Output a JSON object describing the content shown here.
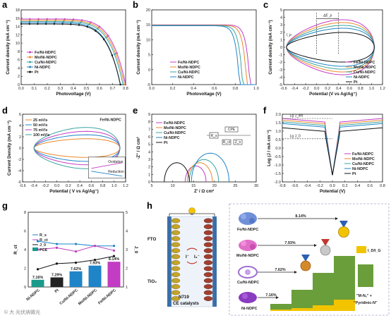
{
  "figure": {
    "watermark": "© 大 光伏纳微光",
    "panel_labels": [
      "a",
      "b",
      "c",
      "d",
      "e",
      "f",
      "g",
      "h"
    ]
  },
  "chart_data": [
    {
      "id": "a",
      "type": "line",
      "xlabel": "Photovoltage (V)",
      "ylabel": "Current density (mA cm⁻²)",
      "xlim": [
        0,
        0.8
      ],
      "ylim": [
        0,
        18
      ],
      "xticks": [
        "0.0",
        "0.1",
        "0.2",
        "0.3",
        "0.4",
        "0.5",
        "0.6",
        "0.7",
        "0.8"
      ],
      "yticks": [
        "0",
        "2",
        "4",
        "6",
        "8",
        "10",
        "12",
        "14",
        "16",
        "18"
      ],
      "legend_position": "bottom-left",
      "series": [
        {
          "name": "Fe/Ni-NDPC",
          "color": "#c23cc4",
          "marker": "circle",
          "jsc": 15.8,
          "voc": 0.8
        },
        {
          "name": "Mo/Ni-NDPC",
          "color": "#e98a2c",
          "marker": "circle",
          "jsc": 15.5,
          "voc": 0.79
        },
        {
          "name": "Cu/Ni-NDPC",
          "color": "#3aa5a0",
          "marker": "circle",
          "jsc": 15.2,
          "voc": 0.78
        },
        {
          "name": "Ni-NDPC",
          "color": "#1f84c8",
          "marker": "circle",
          "jsc": 14.9,
          "voc": 0.76
        },
        {
          "name": "Pt",
          "color": "#111111",
          "marker": "circle",
          "jsc": 14.6,
          "voc": 0.76
        }
      ]
    },
    {
      "id": "b",
      "type": "line",
      "xlabel": "Photovoltage (V)",
      "ylabel": "Current density (mA cm⁻²)",
      "xlim": [
        0,
        1.0
      ],
      "ylim": [
        -5,
        20
      ],
      "xticks": [
        "0.0",
        "0.2",
        "0.4",
        "0.6",
        "0.8",
        "1.0"
      ],
      "yticks": [
        "-5",
        "0",
        "5",
        "10",
        "15",
        "20"
      ],
      "legend_position": "bottom-left",
      "series": [
        {
          "name": "Fe/Ni-NDPC",
          "color": "#c23cc4",
          "jsc": 15.0,
          "voc": 0.93
        },
        {
          "name": "Mo/Ni-NDPC",
          "color": "#e98a2c",
          "jsc": 14.9,
          "voc": 0.9
        },
        {
          "name": "Cu/Ni-NDPC",
          "color": "#3aa5a0",
          "jsc": 14.8,
          "voc": 0.86
        },
        {
          "name": "Ni-NDPC",
          "color": "#1f84c8",
          "jsc": 14.7,
          "voc": 0.83
        }
      ]
    },
    {
      "id": "c",
      "type": "line",
      "xlabel": "Potential (V vs Ag/Ag⁺)",
      "ylabel": "Current density (mA cm⁻²)",
      "xlim": [
        -0.6,
        1.2
      ],
      "ylim": [
        -5,
        5
      ],
      "xticks": [
        "-0.6",
        "-0.4",
        "-0.2",
        "0.0",
        "0.2",
        "0.4",
        "0.6",
        "0.8",
        "1.0",
        "1.2"
      ],
      "yticks": [
        "-5",
        "-4",
        "-3",
        "-2",
        "-1",
        "0",
        "1",
        "2",
        "3",
        "4",
        "5"
      ],
      "annotations": [
        "ΔE_p",
        "I_p"
      ],
      "legend_position": "bottom-right",
      "series": [
        {
          "name": "Fe/Ni-NDPC",
          "color": "#c23cc4",
          "amp": 3.9
        },
        {
          "name": "Mo/Ni-NDPC",
          "color": "#e98a2c",
          "amp": 3.5
        },
        {
          "name": "Cu/Ni-NDPC",
          "color": "#3aa5a0",
          "amp": 3.1
        },
        {
          "name": "Ni-NDPC",
          "color": "#1f84c8",
          "amp": 2.7
        },
        {
          "name": "Pt",
          "color": "#111111",
          "amp": 2.1
        }
      ]
    },
    {
      "id": "d",
      "type": "line",
      "xlabel": "Potential ( V vs Ag/Ag⁺)",
      "ylabel": "Current Density (mA cm⁻²)",
      "xlim": [
        -0.6,
        1.2
      ],
      "ylim": [
        -6,
        6
      ],
      "xticks": [
        "-0.6",
        "-0.4",
        "-0.2",
        "0.0",
        "0.2",
        "0.4",
        "0.6",
        "0.8",
        "1.0",
        "1.2"
      ],
      "yticks": [
        "-6",
        "-4",
        "-2",
        "0",
        "2",
        "4",
        "6"
      ],
      "title_inset": "Fe/Ni-NDPC",
      "inset_labels": [
        "Oxidation",
        "Reduction"
      ],
      "legend_position": "top-left",
      "series": [
        {
          "name": "25 mV/s",
          "color": "#e98a2c",
          "amp": 1.9
        },
        {
          "name": "50 mV/s",
          "color": "#1f84c8",
          "amp": 2.7
        },
        {
          "name": "75 mV/s",
          "color": "#c23cc4",
          "amp": 3.4
        },
        {
          "name": "100 mV/s",
          "color": "#3aa5a0",
          "amp": 4.2
        }
      ]
    },
    {
      "id": "e",
      "type": "line",
      "xlabel": "Z' / Ω cm²",
      "ylabel": "-Z'' / Ω cm²",
      "xlim": [
        5,
        30
      ],
      "ylim": [
        0,
        9
      ],
      "xticks": [
        "5",
        "10",
        "15",
        "20",
        "25",
        "30"
      ],
      "yticks": [
        "0",
        "1",
        "2",
        "3",
        "4",
        "5",
        "6",
        "7",
        "8",
        "9"
      ],
      "circuit_labels": [
        "R_s",
        "CPE",
        "R_ct",
        "Z_n"
      ],
      "legend_position": "top-left",
      "series": [
        {
          "name": "Fe/Ni-NDPC",
          "color": "#c23cc4",
          "r0": 13.0,
          "r1": 18.0
        },
        {
          "name": "Mo/Ni-NDPC",
          "color": "#e98a2c",
          "r0": 13.5,
          "r1": 19.5
        },
        {
          "name": "Cu/Ni-NDPC",
          "color": "#3aa5a0",
          "r0": 14.0,
          "r1": 21.0
        },
        {
          "name": "Ni-NDPC",
          "color": "#1f84c8",
          "r0": 14.5,
          "r1": 23.5
        },
        {
          "name": "Pt",
          "color": "#111111",
          "r0": 8.0,
          "r1": 14.0
        }
      ]
    },
    {
      "id": "f",
      "type": "line",
      "xlabel": "Potential (V)",
      "ylabel": "Log (J / mA cm⁻²)",
      "xlim": [
        -0.8,
        0.8
      ],
      "ylim": [
        -2.0,
        2.0
      ],
      "xticks": [
        "-0.8",
        "-0.6",
        "-0.4",
        "-0.2",
        "0.0",
        "0.2",
        "0.4",
        "0.6",
        "0.8"
      ],
      "yticks": [
        "-2.0",
        "-1.5",
        "-1.0",
        "-0.5",
        "0.0",
        "0.5",
        "1.0",
        "1.5",
        "2.0"
      ],
      "annotations": [
        "Lg J_lim",
        "Lg J_0"
      ],
      "legend_position": "bottom-right",
      "series": [
        {
          "name": "Fe/Ni-NDPC",
          "color": "#c23cc4",
          "plateau": 1.75
        },
        {
          "name": "Mo/Ni-NDPC",
          "color": "#e98a2c",
          "plateau": 1.65
        },
        {
          "name": "Cu/Ni-NDPC",
          "color": "#3aa5a0",
          "plateau": 1.55
        },
        {
          "name": "Ni-NDPC",
          "color": "#1f84c8",
          "plateau": 1.45
        },
        {
          "name": "Pt",
          "color": "#111111",
          "plateau": 1.2
        }
      ]
    },
    {
      "id": "g",
      "type": "bar",
      "categories": [
        "Ni-NDPC",
        "Pt",
        "Cu/Ni-NDPC",
        "Mo/Ni-NDPC",
        "Fe/Ni-NDPC"
      ],
      "pce_values": [
        7.16,
        7.29,
        7.62,
        7.93,
        8.14
      ],
      "pce_labels": [
        "7.16%",
        "7.29%",
        "7.62%",
        "7.93%",
        "8.14%"
      ],
      "bar_colors": [
        "#1a9a8a",
        "#222222",
        "#1f84c8",
        "#1f84c8",
        "#c23cc4"
      ],
      "ylabel_left": "R_ct",
      "ylabel_right": "J_0",
      "yticks_left": [
        "0",
        "2",
        "4",
        "6",
        "8"
      ],
      "yticks_right": [
        "1",
        "2",
        "3",
        "4",
        "5"
      ],
      "legend": [
        {
          "name": "R_s",
          "color": "#1f84c8"
        },
        {
          "name": "R_ct",
          "color": "#c23cc4"
        },
        {
          "name": "J_0",
          "color": "#111111"
        },
        {
          "name": "PCE",
          "color": "#1a9a8a"
        }
      ],
      "series_lines": [
        {
          "name": "R_s",
          "color": "#1f84c8",
          "values": [
            4.9,
            4.6,
            4.6,
            4.4,
            4.4
          ]
        },
        {
          "name": "R_ct",
          "color": "#c23cc4",
          "values": [
            4.0,
            4.2,
            3.8,
            4.4,
            3.9
          ]
        },
        {
          "name": "J_0",
          "color": "#111111",
          "values": [
            1.9,
            2.5,
            2.6,
            2.9,
            3.3
          ]
        }
      ]
    }
  ],
  "schematic_h": {
    "labels": {
      "fto": "FTO",
      "tio2": "TiO₂",
      "n719": "N719",
      "ce_catalysts": "CE catalysts",
      "i_minus": "I⁻",
      "i3_minus": "I₃⁻"
    },
    "materials": [
      "Fe/Ni-NDPC",
      "Mo/Ni-NDPC",
      "Cu/Ni-NDPC",
      "Ni-NDPC"
    ],
    "pce": [
      "8.14%",
      "7.93%",
      "7.62%",
      "7.16%"
    ],
    "legend_id_ig": "I_D/I_G",
    "legend_mnx": "\"M-Nₓ\" +",
    "legend_pyridinic": "\"Pyridinic-N\""
  }
}
